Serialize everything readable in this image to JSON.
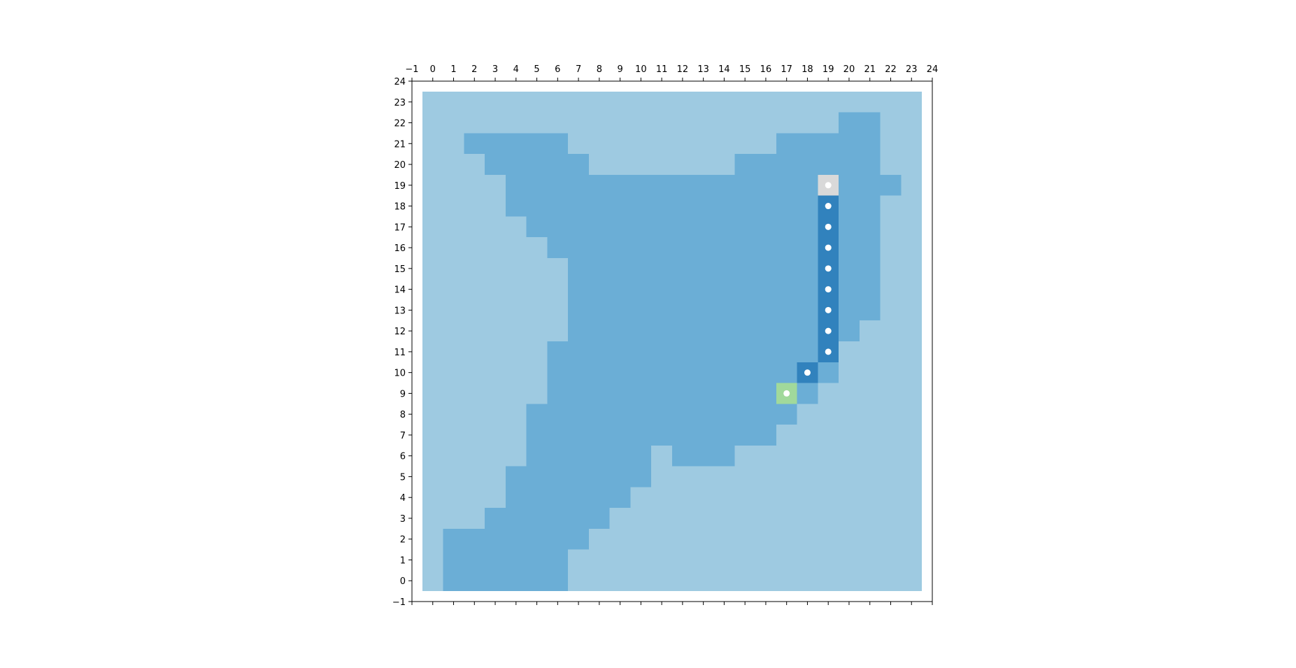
{
  "chart_data": {
    "type": "heatmap",
    "title": "",
    "xlabel": "",
    "ylabel": "",
    "xlim": [
      -1,
      24
    ],
    "ylim": [
      -1,
      24
    ],
    "xticks": [
      -1,
      0,
      1,
      2,
      3,
      4,
      5,
      6,
      7,
      8,
      9,
      10,
      11,
      12,
      13,
      14,
      15,
      16,
      17,
      18,
      19,
      20,
      21,
      22,
      23,
      24
    ],
    "yticks": [
      -1,
      0,
      1,
      2,
      3,
      4,
      5,
      6,
      7,
      8,
      9,
      10,
      11,
      12,
      13,
      14,
      15,
      16,
      17,
      18,
      19,
      20,
      21,
      22,
      23,
      24
    ],
    "x_axis_position": "top",
    "grid": false,
    "colors": {
      "background": "#9ecae1",
      "region": "#6baed6",
      "path": "#3182bd",
      "start": "#a1d99b",
      "goal": "#d9d9d9",
      "marker": "#ffffff"
    },
    "region_rows": [
      {
        "y": 0,
        "x": [
          1,
          6
        ]
      },
      {
        "y": 1,
        "x": [
          1,
          6
        ]
      },
      {
        "y": 2,
        "x": [
          1,
          7
        ]
      },
      {
        "y": 3,
        "x": [
          3,
          8
        ]
      },
      {
        "y": 4,
        "x": [
          4,
          9
        ]
      },
      {
        "y": 5,
        "x": [
          4,
          10
        ]
      },
      {
        "y": 6,
        "x": [
          5,
          10
        ]
      },
      {
        "y": 6,
        "x": [
          12,
          14
        ]
      },
      {
        "y": 7,
        "x": [
          5,
          16
        ]
      },
      {
        "y": 8,
        "x": [
          5,
          17
        ]
      },
      {
        "y": 9,
        "x": [
          6,
          18
        ]
      },
      {
        "y": 10,
        "x": [
          6,
          19
        ]
      },
      {
        "y": 11,
        "x": [
          6,
          19
        ]
      },
      {
        "y": 12,
        "x": [
          7,
          20
        ]
      },
      {
        "y": 13,
        "x": [
          7,
          21
        ]
      },
      {
        "y": 14,
        "x": [
          7,
          21
        ]
      },
      {
        "y": 15,
        "x": [
          7,
          21
        ]
      },
      {
        "y": 16,
        "x": [
          6,
          21
        ]
      },
      {
        "y": 17,
        "x": [
          5,
          21
        ]
      },
      {
        "y": 18,
        "x": [
          4,
          21
        ]
      },
      {
        "y": 19,
        "x": [
          4,
          22
        ]
      },
      {
        "y": 20,
        "x": [
          3,
          7
        ]
      },
      {
        "y": 20,
        "x": [
          15,
          21
        ]
      },
      {
        "y": 21,
        "x": [
          2,
          6
        ]
      },
      {
        "y": 21,
        "x": [
          17,
          21
        ]
      },
      {
        "y": 22,
        "x": [
          20,
          21
        ]
      }
    ],
    "path_cells": [
      [
        18,
        10
      ],
      [
        19,
        11
      ],
      [
        19,
        12
      ],
      [
        19,
        13
      ],
      [
        19,
        14
      ],
      [
        19,
        15
      ],
      [
        19,
        16
      ],
      [
        19,
        17
      ],
      [
        19,
        18
      ]
    ],
    "start_cell": [
      17,
      9
    ],
    "goal_cell": [
      19,
      19
    ],
    "markers": [
      [
        17,
        9
      ],
      [
        18,
        10
      ],
      [
        19,
        11
      ],
      [
        19,
        12
      ],
      [
        19,
        13
      ],
      [
        19,
        14
      ],
      [
        19,
        15
      ],
      [
        19,
        16
      ],
      [
        19,
        17
      ],
      [
        19,
        18
      ],
      [
        19,
        19
      ]
    ]
  }
}
